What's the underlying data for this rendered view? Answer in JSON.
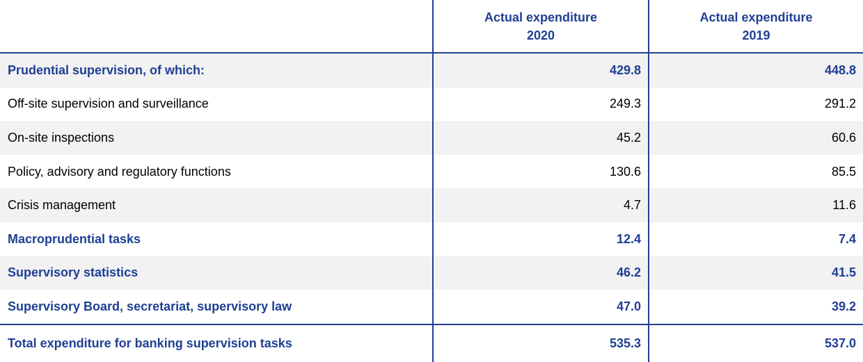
{
  "table": {
    "columns": [
      "Actual expenditure 2020",
      "Actual expenditure 2019"
    ],
    "rows": [
      {
        "label": "Prudential supervision, of which:",
        "values": [
          "429.8",
          "448.8"
        ],
        "bold": true
      },
      {
        "label": "Off-site supervision and surveillance",
        "values": [
          "249.3",
          "291.2"
        ],
        "bold": false
      },
      {
        "label": "On-site inspections",
        "values": [
          "45.2",
          "60.6"
        ],
        "bold": false
      },
      {
        "label": "Policy, advisory and regulatory functions",
        "values": [
          "130.6",
          "85.5"
        ],
        "bold": false
      },
      {
        "label": "Crisis management",
        "values": [
          "4.7",
          "11.6"
        ],
        "bold": false
      },
      {
        "label": "Macroprudential tasks",
        "values": [
          "12.4",
          "7.4"
        ],
        "bold": true
      },
      {
        "label": "Supervisory statistics",
        "values": [
          "46.2",
          "41.5"
        ],
        "bold": true
      },
      {
        "label": "Supervisory Board, secretariat, supervisory law",
        "values": [
          "47.0",
          "39.2"
        ],
        "bold": true
      }
    ],
    "total": {
      "label": "Total expenditure for banking supervision tasks",
      "values": [
        "535.3",
        "537.0"
      ],
      "bold": true
    }
  }
}
